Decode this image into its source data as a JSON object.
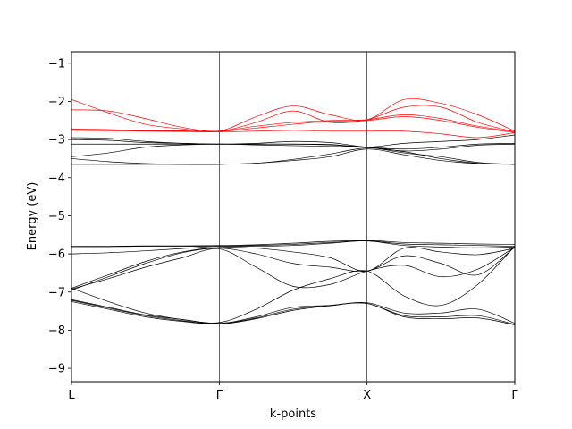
{
  "chart_data": {
    "type": "line",
    "title": "",
    "xlabel": "k-points",
    "ylabel": "Energy (eV)",
    "ylim": [
      -9.35,
      -0.7
    ],
    "yticks": [
      -9,
      -8,
      -7,
      -6,
      -5,
      -4,
      -3,
      -2,
      -1
    ],
    "ytick_labels": [
      "−9",
      "−8",
      "−7",
      "−6",
      "−5",
      "−4",
      "−3",
      "−2",
      "−1"
    ],
    "xlim": [
      0,
      3
    ],
    "xticks": [
      0,
      1,
      2,
      3
    ],
    "xtick_labels": [
      "L",
      "Γ",
      "X",
      "Γ"
    ],
    "vlines": [
      1,
      2
    ],
    "grid": false,
    "colors": {
      "valence": "#000000",
      "conduction": "#ff0000"
    },
    "x": [
      0,
      0.25,
      0.5,
      0.75,
      1,
      1.25,
      1.5,
      1.75,
      2,
      2.25,
      2.5,
      2.75,
      3
    ],
    "series": [
      {
        "group": "conduction",
        "values": [
          -1.95,
          -2.3,
          -2.6,
          -2.72,
          -2.78,
          -2.4,
          -2.12,
          -2.35,
          -2.48,
          -1.95,
          -2.05,
          -2.35,
          -2.78
        ]
      },
      {
        "group": "conduction",
        "values": [
          -2.22,
          -2.25,
          -2.45,
          -2.68,
          -2.78,
          -2.55,
          -2.25,
          -2.55,
          -2.48,
          -2.15,
          -2.15,
          -2.55,
          -2.8
        ]
      },
      {
        "group": "conduction",
        "values": [
          -2.72,
          -2.74,
          -2.76,
          -2.77,
          -2.78,
          -2.65,
          -2.55,
          -2.5,
          -2.48,
          -2.35,
          -2.45,
          -2.65,
          -2.8
        ]
      },
      {
        "group": "conduction",
        "values": [
          -2.74,
          -2.75,
          -2.77,
          -2.78,
          -2.79,
          -2.7,
          -2.6,
          -2.52,
          -2.5,
          -2.4,
          -2.5,
          -2.68,
          -2.82
        ]
      },
      {
        "group": "conduction",
        "values": [
          -2.76,
          -2.77,
          -2.78,
          -2.79,
          -2.8,
          -2.78,
          -2.76,
          -2.78,
          -2.78,
          -2.78,
          -2.85,
          -2.95,
          -2.82
        ]
      },
      {
        "group": "valence",
        "values": [
          -2.95,
          -2.97,
          -3.05,
          -3.1,
          -3.12,
          -3.12,
          -3.12,
          -3.13,
          -3.2,
          -3.1,
          -3.05,
          -3.0,
          -2.88
        ]
      },
      {
        "group": "valence",
        "values": [
          -3.0,
          -3.02,
          -3.08,
          -3.1,
          -3.12,
          -3.1,
          -3.05,
          -3.08,
          -3.2,
          -3.25,
          -3.2,
          -3.12,
          -3.1
        ]
      },
      {
        "group": "valence",
        "values": [
          -3.12,
          -3.12,
          -3.12,
          -3.12,
          -3.12,
          -3.12,
          -3.12,
          -3.14,
          -3.2,
          -3.3,
          -3.25,
          -3.15,
          -3.12
        ]
      },
      {
        "group": "valence",
        "values": [
          -3.45,
          -3.35,
          -3.2,
          -3.14,
          -3.12,
          -3.14,
          -3.16,
          -3.18,
          -3.2,
          -3.35,
          -3.45,
          -3.6,
          -3.65
        ]
      },
      {
        "group": "valence",
        "values": [
          -3.5,
          -3.58,
          -3.63,
          -3.65,
          -3.65,
          -3.62,
          -3.55,
          -3.45,
          -3.25,
          -3.4,
          -3.55,
          -3.63,
          -3.65
        ]
      },
      {
        "group": "valence",
        "values": [
          -3.65,
          -3.65,
          -3.65,
          -3.65,
          -3.65,
          -3.62,
          -3.52,
          -3.38,
          -3.22,
          -3.32,
          -3.5,
          -3.62,
          -3.65
        ]
      },
      {
        "group": "valence",
        "values": [
          -5.8,
          -5.8,
          -5.79,
          -5.79,
          -5.78,
          -5.76,
          -5.72,
          -5.67,
          -5.65,
          -5.7,
          -5.72,
          -5.74,
          -5.75
        ]
      },
      {
        "group": "valence",
        "values": [
          -5.81,
          -5.81,
          -5.8,
          -5.8,
          -5.8,
          -5.78,
          -5.75,
          -5.7,
          -5.66,
          -5.74,
          -5.76,
          -5.78,
          -5.8
        ]
      },
      {
        "group": "valence",
        "values": [
          -6.0,
          -5.97,
          -5.92,
          -5.86,
          -5.8,
          -5.8,
          -5.78,
          -5.72,
          -5.66,
          -5.78,
          -5.82,
          -5.84,
          -5.82
        ]
      },
      {
        "group": "valence",
        "values": [
          -6.9,
          -6.55,
          -6.2,
          -5.95,
          -5.83,
          -5.85,
          -5.95,
          -6.1,
          -6.45,
          -5.85,
          -5.95,
          -6.02,
          -5.85
        ]
      },
      {
        "group": "valence",
        "values": [
          -6.95,
          -6.6,
          -6.25,
          -5.97,
          -5.85,
          -6.0,
          -6.25,
          -6.35,
          -6.45,
          -6.05,
          -6.25,
          -6.55,
          -5.82
        ]
      },
      {
        "group": "valence",
        "values": [
          -6.92,
          -6.65,
          -6.35,
          -6.1,
          -5.87,
          -6.35,
          -6.85,
          -6.8,
          -6.45,
          -6.3,
          -6.6,
          -6.4,
          -5.82
        ]
      },
      {
        "group": "valence",
        "values": [
          -6.9,
          -7.25,
          -7.55,
          -7.72,
          -7.8,
          -7.45,
          -6.95,
          -6.65,
          -6.45,
          -7.1,
          -7.35,
          -6.8,
          -5.8
        ]
      },
      {
        "group": "valence",
        "values": [
          -7.2,
          -7.4,
          -7.6,
          -7.72,
          -7.82,
          -7.65,
          -7.4,
          -7.35,
          -7.28,
          -7.55,
          -7.55,
          -7.45,
          -7.82
        ]
      },
      {
        "group": "valence",
        "values": [
          -7.22,
          -7.42,
          -7.62,
          -7.75,
          -7.83,
          -7.68,
          -7.45,
          -7.35,
          -7.3,
          -7.62,
          -7.65,
          -7.62,
          -7.85
        ]
      },
      {
        "group": "valence",
        "values": [
          -7.25,
          -7.45,
          -7.65,
          -7.77,
          -7.84,
          -7.7,
          -7.48,
          -7.36,
          -7.3,
          -7.65,
          -7.7,
          -7.68,
          -7.86
        ]
      }
    ]
  }
}
